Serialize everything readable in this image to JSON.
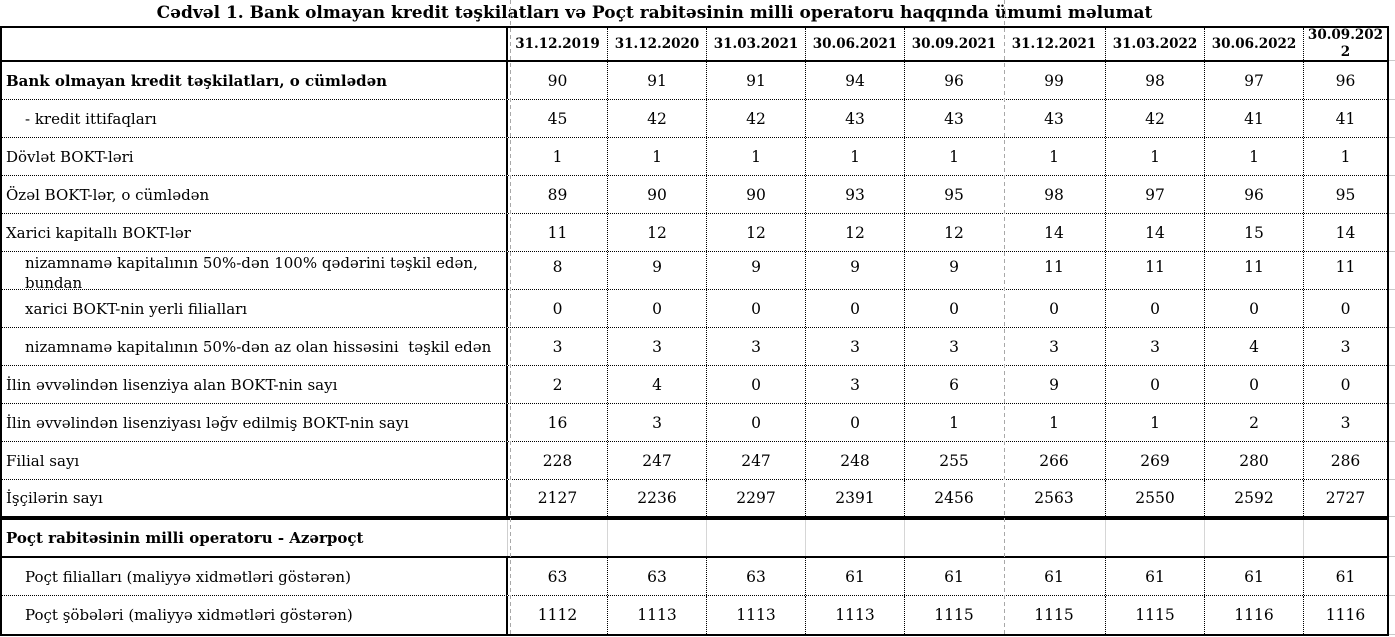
{
  "title": "Cədvəl 1. Bank olmayan kredit təşkilatları və Poçt rabitəsinin milli operatoru haqqında ümumi məlumat",
  "table": {
    "column_headers": [
      "31.12.2019",
      "31.12.2020",
      "31.03.2021",
      "30.06.2021",
      "30.09.2021",
      "31.12.2021",
      "31.03.2022",
      "30.06.2022",
      "30.09.2022"
    ],
    "rows": [
      {
        "label": "Bank olmayan kredit təşkilatları, o cümlədən",
        "bold": true,
        "indent": false,
        "section": false,
        "two_line": false,
        "values": [
          90,
          91,
          91,
          94,
          96,
          99,
          98,
          97,
          96
        ]
      },
      {
        "label": "- kredit ittifaqları",
        "bold": false,
        "indent": true,
        "section": false,
        "two_line": false,
        "values": [
          45,
          42,
          42,
          43,
          43,
          43,
          42,
          41,
          41
        ]
      },
      {
        "label": "Dövlət BOKT-ləri",
        "bold": false,
        "indent": false,
        "section": false,
        "two_line": false,
        "values": [
          1,
          1,
          1,
          1,
          1,
          1,
          1,
          1,
          1
        ]
      },
      {
        "label": "Özəl BOKT-lər, o cümlədən",
        "bold": false,
        "indent": false,
        "section": false,
        "two_line": false,
        "values": [
          89,
          90,
          90,
          93,
          95,
          98,
          97,
          96,
          95
        ]
      },
      {
        "label": "Xarici kapitallı BOKT-lər",
        "bold": false,
        "indent": false,
        "section": false,
        "two_line": false,
        "values": [
          11,
          12,
          12,
          12,
          12,
          14,
          14,
          15,
          14
        ]
      },
      {
        "label": "nizamnamə kapitalının 50%-dən 100% qədərini təşkil edən,\nbundan",
        "bold": false,
        "indent": true,
        "section": false,
        "two_line": true,
        "values": [
          8,
          9,
          9,
          9,
          9,
          11,
          11,
          11,
          11
        ]
      },
      {
        "label": "xarici BOKT-nin yerli filialları",
        "bold": false,
        "indent": true,
        "section": false,
        "two_line": false,
        "values": [
          0,
          0,
          0,
          0,
          0,
          0,
          0,
          0,
          0
        ]
      },
      {
        "label": "nizamnamə kapitalının 50%-dən az olan hissəsini  təşkil edən",
        "bold": false,
        "indent": true,
        "section": false,
        "two_line": false,
        "values": [
          3,
          3,
          3,
          3,
          3,
          3,
          3,
          4,
          3
        ]
      },
      {
        "label": "İlin əvvəlindən lisenziya alan BOKT-nin sayı",
        "bold": false,
        "indent": false,
        "section": false,
        "two_line": false,
        "values": [
          2,
          4,
          0,
          3,
          6,
          9,
          0,
          0,
          0
        ]
      },
      {
        "label": "İlin əvvəlindən lisenziyası ləğv edilmiş BOKT-nin sayı",
        "bold": false,
        "indent": false,
        "section": false,
        "two_line": false,
        "values": [
          16,
          3,
          0,
          0,
          1,
          1,
          1,
          2,
          3
        ]
      },
      {
        "label": "Filial sayı",
        "bold": false,
        "indent": false,
        "section": false,
        "two_line": false,
        "values": [
          228,
          247,
          247,
          248,
          255,
          266,
          269,
          280,
          286
        ]
      },
      {
        "label": "İşçilərin sayı",
        "bold": false,
        "indent": false,
        "section": false,
        "two_line": false,
        "thick_bottom": true,
        "values": [
          2127,
          2236,
          2297,
          2391,
          2456,
          2563,
          2550,
          2592,
          2727
        ]
      },
      {
        "label": "Poçt rabitəsinin milli operatoru - Azərpoçt",
        "bold": true,
        "indent": false,
        "section": true,
        "two_line": false,
        "values": [
          "",
          "",
          "",
          "",
          "",
          "",
          "",
          "",
          ""
        ]
      },
      {
        "label": "Poçt filialları (maliyyə xidmətləri göstərən)",
        "bold": false,
        "indent": true,
        "section": false,
        "two_line": false,
        "values": [
          63,
          63,
          63,
          61,
          61,
          61,
          61,
          61,
          61
        ]
      },
      {
        "label": "Poçt şöbələri (maliyyə xidmətləri göstərən)",
        "bold": false,
        "indent": true,
        "section": false,
        "two_line": false,
        "last": true,
        "values": [
          1112,
          1113,
          1113,
          1113,
          1115,
          1115,
          1115,
          1116,
          1116
        ]
      }
    ]
  },
  "colors": {
    "text": "#000000",
    "border": "#000000",
    "light_grid": "#d6d6d6",
    "page_break_dash": "#a8a8a8",
    "background": "#ffffff"
  }
}
